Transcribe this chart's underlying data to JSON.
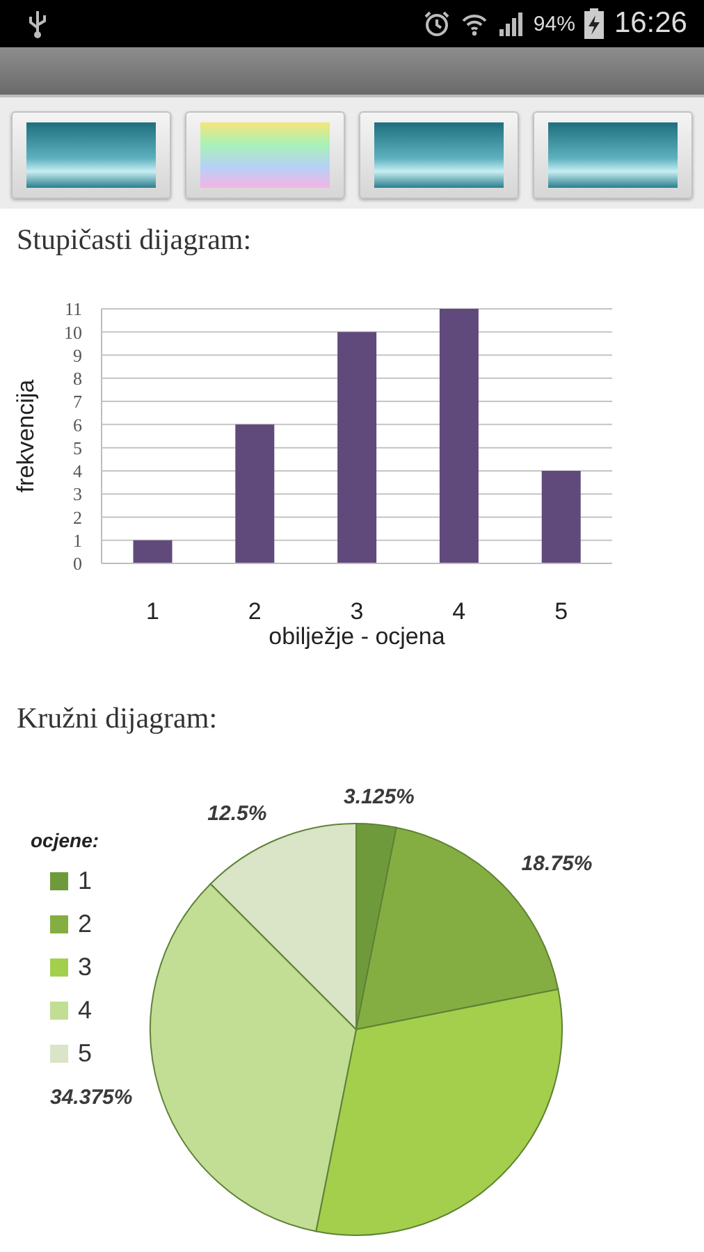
{
  "chart_data": [
    {
      "type": "bar",
      "title": "Stupičasti dijagram:",
      "xlabel": "obilježje - ocjena",
      "ylabel": "frekvencija",
      "categories": [
        "1",
        "2",
        "3",
        "4",
        "5"
      ],
      "values": [
        1,
        6,
        10,
        11,
        4
      ],
      "color": "#604a7b",
      "ylim": [
        0,
        11
      ],
      "yticks": [
        0,
        1,
        2,
        3,
        4,
        5,
        6,
        7,
        8,
        9,
        10,
        11
      ],
      "grid": "y",
      "annotations": [
        "94%",
        "16:26"
      ]
    },
    {
      "type": "pie",
      "title": "Kružni dijagram:",
      "legend_title": "ocjene:",
      "categories": [
        "1",
        "2",
        "3",
        "4",
        "5"
      ],
      "values": [
        3.125,
        18.75,
        31.25,
        34.375,
        12.5
      ],
      "colors": [
        "#6f9a3c",
        "#84ae42",
        "#a4cf4c",
        "#c2de94",
        "#d9e5c6"
      ],
      "value_labels": [
        "3.125%",
        "18.75%",
        null,
        "34.375%",
        "12.5%"
      ],
      "legend": "left"
    }
  ]
}
